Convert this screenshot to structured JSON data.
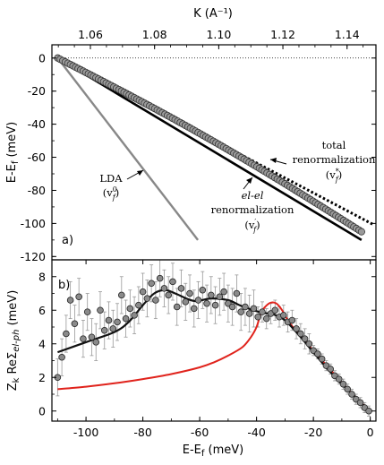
{
  "chart_data": [
    {
      "type": "scatter",
      "panel_label": "a)",
      "ylabel": "E-E_f (meV)",
      "top_xlabel": "K (A⁻¹)",
      "top_xlim": [
        1.048,
        1.149
      ],
      "top_xticks": [
        "1.06",
        "1.08",
        "1.10",
        "1.12",
        "1.14"
      ],
      "top_xtick_values": [
        1.06,
        1.08,
        1.1,
        1.12,
        1.14
      ],
      "ylim": [
        -122,
        8
      ],
      "yticks": [
        "0",
        "-20",
        "-40",
        "-60",
        "-80",
        "-100",
        "-120"
      ],
      "ytick_values": [
        0,
        -20,
        -40,
        -60,
        -80,
        -100,
        -120
      ],
      "zero_line": "dotted",
      "series": [
        {
          "type": "line",
          "color": "#888888",
          "points": [
            [
              1.0498,
              0
            ],
            [
              1.0935,
              -110
            ]
          ]
        },
        {
          "type": "line",
          "color": "#000000",
          "points": [
            [
              1.0498,
              0
            ],
            [
              1.1445,
              -110
            ]
          ]
        },
        {
          "type": "dotted-line",
          "color": "#000000",
          "points": [
            [
              1.0498,
              0
            ],
            [
              1.1485,
              -101
            ]
          ]
        },
        {
          "type": "markers",
          "color": "#888888",
          "x_range": [
            1.0498,
            1.1445
          ],
          "y_range": [
            0,
            -105
          ],
          "count": 120
        }
      ],
      "annotations": {
        "lda": {
          "line1": "LDA",
          "line2": "(v",
          "sup": "0",
          "sub": "f",
          "close": ")"
        },
        "elel": {
          "line1": "el-el",
          "line2": "renormalization",
          "line3": "(v",
          "sup": "′",
          "sub": "f",
          "close": ")"
        },
        "total": {
          "line1": "total",
          "line2": "renormalization",
          "line3": "(v",
          "sup": "*",
          "sub": "f",
          "close": ")"
        }
      }
    },
    {
      "type": "scatter",
      "panel_label": "b)",
      "ylabel": "Z_k ReΣ_el-ph (meV)",
      "xlabel": "E-E_f (meV)",
      "xlim": [
        -112,
        2
      ],
      "xticks": [
        "-100",
        "-80",
        "-60",
        "-40",
        "-20",
        "0"
      ],
      "xtick_values": [
        -100,
        -80,
        -60,
        -40,
        -20,
        0
      ],
      "ylim": [
        -0.6,
        9
      ],
      "yticks": [
        "0",
        "2",
        "4",
        "6",
        "8"
      ],
      "ytick_values": [
        0,
        2,
        4,
        6,
        8
      ],
      "smooth_fit": [
        [
          -110,
          3.5
        ],
        [
          -100,
          4.1
        ],
        [
          -90,
          4.7
        ],
        [
          -85,
          5.3
        ],
        [
          -80,
          6.3
        ],
        [
          -76,
          7.0
        ],
        [
          -72,
          7.2
        ],
        [
          -68,
          6.95
        ],
        [
          -62,
          6.55
        ],
        [
          -56,
          6.7
        ],
        [
          -50,
          6.6
        ],
        [
          -46,
          6.3
        ],
        [
          -42,
          6.05
        ],
        [
          -38,
          5.85
        ],
        [
          -34,
          5.75
        ],
        [
          -30,
          5.4
        ],
        [
          -25,
          4.5
        ],
        [
          -20,
          3.5
        ],
        [
          -15,
          2.5
        ],
        [
          -10,
          1.6
        ],
        [
          -5,
          0.8
        ],
        [
          -1,
          0.1
        ]
      ],
      "red_curve": [
        [
          -110,
          1.3
        ],
        [
          -100,
          1.45
        ],
        [
          -90,
          1.65
        ],
        [
          -80,
          1.9
        ],
        [
          -70,
          2.2
        ],
        [
          -60,
          2.6
        ],
        [
          -55,
          2.9
        ],
        [
          -50,
          3.3
        ],
        [
          -45,
          3.8
        ],
        [
          -42,
          4.4
        ],
        [
          -40,
          5.0
        ],
        [
          -38.5,
          5.8
        ],
        [
          -37,
          6.2
        ],
        [
          -35,
          6.45
        ],
        [
          -33,
          6.4
        ],
        [
          -31,
          6.0
        ],
        [
          -29,
          5.4
        ],
        [
          -27,
          4.95
        ],
        [
          -25,
          4.55
        ],
        [
          -20,
          3.6
        ],
        [
          -15,
          2.65
        ],
        [
          -10,
          1.7
        ],
        [
          -5,
          0.8
        ],
        [
          0,
          0
        ]
      ],
      "points": [
        [
          -110,
          2.0
        ],
        [
          -108.5,
          3.2
        ],
        [
          -107,
          4.6
        ],
        [
          -105.5,
          6.6
        ],
        [
          -104,
          5.2
        ],
        [
          -102.5,
          6.8
        ],
        [
          -101,
          4.3
        ],
        [
          -99.5,
          5.9
        ],
        [
          -98,
          4.4
        ],
        [
          -96.5,
          4.1
        ],
        [
          -95,
          6.0
        ],
        [
          -93.5,
          4.8
        ],
        [
          -92,
          5.4
        ],
        [
          -90.5,
          4.9
        ],
        [
          -89,
          5.3
        ],
        [
          -87.5,
          6.9
        ],
        [
          -86,
          5.5
        ],
        [
          -84.5,
          6.1
        ],
        [
          -83,
          5.7
        ],
        [
          -81.5,
          6.3
        ],
        [
          -80,
          7.1
        ],
        [
          -78.5,
          6.7
        ],
        [
          -77,
          7.6
        ],
        [
          -75.5,
          6.6
        ],
        [
          -74,
          7.9
        ],
        [
          -72.5,
          7.3
        ],
        [
          -71,
          6.9
        ],
        [
          -69.5,
          7.7
        ],
        [
          -68,
          6.2
        ],
        [
          -66.5,
          7.3
        ],
        [
          -65,
          6.5
        ],
        [
          -63.5,
          7.0
        ],
        [
          -62,
          6.1
        ],
        [
          -60.5,
          6.6
        ],
        [
          -59,
          7.2
        ],
        [
          -57.5,
          6.4
        ],
        [
          -56,
          6.9
        ],
        [
          -54.5,
          6.3
        ],
        [
          -53,
          6.8
        ],
        [
          -51.5,
          7.1
        ],
        [
          -50,
          6.4
        ],
        [
          -48.5,
          6.2
        ],
        [
          -47,
          7.0
        ],
        [
          -45.5,
          5.9
        ],
        [
          -44,
          6.2
        ],
        [
          -42.5,
          5.8
        ],
        [
          -41,
          6.1
        ],
        [
          -39.5,
          5.6
        ],
        [
          -38,
          5.9
        ],
        [
          -36.5,
          5.5
        ],
        [
          -35,
          5.8
        ],
        [
          -33.5,
          6.0
        ],
        [
          -32,
          5.6
        ],
        [
          -30.5,
          5.7
        ],
        [
          -29,
          5.3
        ],
        [
          -27.5,
          5.4
        ],
        [
          -26,
          4.9
        ],
        [
          -24.5,
          4.6
        ],
        [
          -23,
          4.3
        ],
        [
          -21.5,
          4.0
        ],
        [
          -20,
          3.6
        ],
        [
          -18.5,
          3.4
        ],
        [
          -17,
          3.1
        ],
        [
          -15.5,
          2.7
        ],
        [
          -14,
          2.5
        ],
        [
          -12.5,
          2.1
        ],
        [
          -11,
          1.9
        ],
        [
          -9.5,
          1.6
        ],
        [
          -8,
          1.3
        ],
        [
          -6.5,
          1.0
        ],
        [
          -5,
          0.7
        ],
        [
          -3.5,
          0.5
        ],
        [
          -2,
          0.2
        ],
        [
          -0.5,
          0.0
        ]
      ]
    }
  ]
}
